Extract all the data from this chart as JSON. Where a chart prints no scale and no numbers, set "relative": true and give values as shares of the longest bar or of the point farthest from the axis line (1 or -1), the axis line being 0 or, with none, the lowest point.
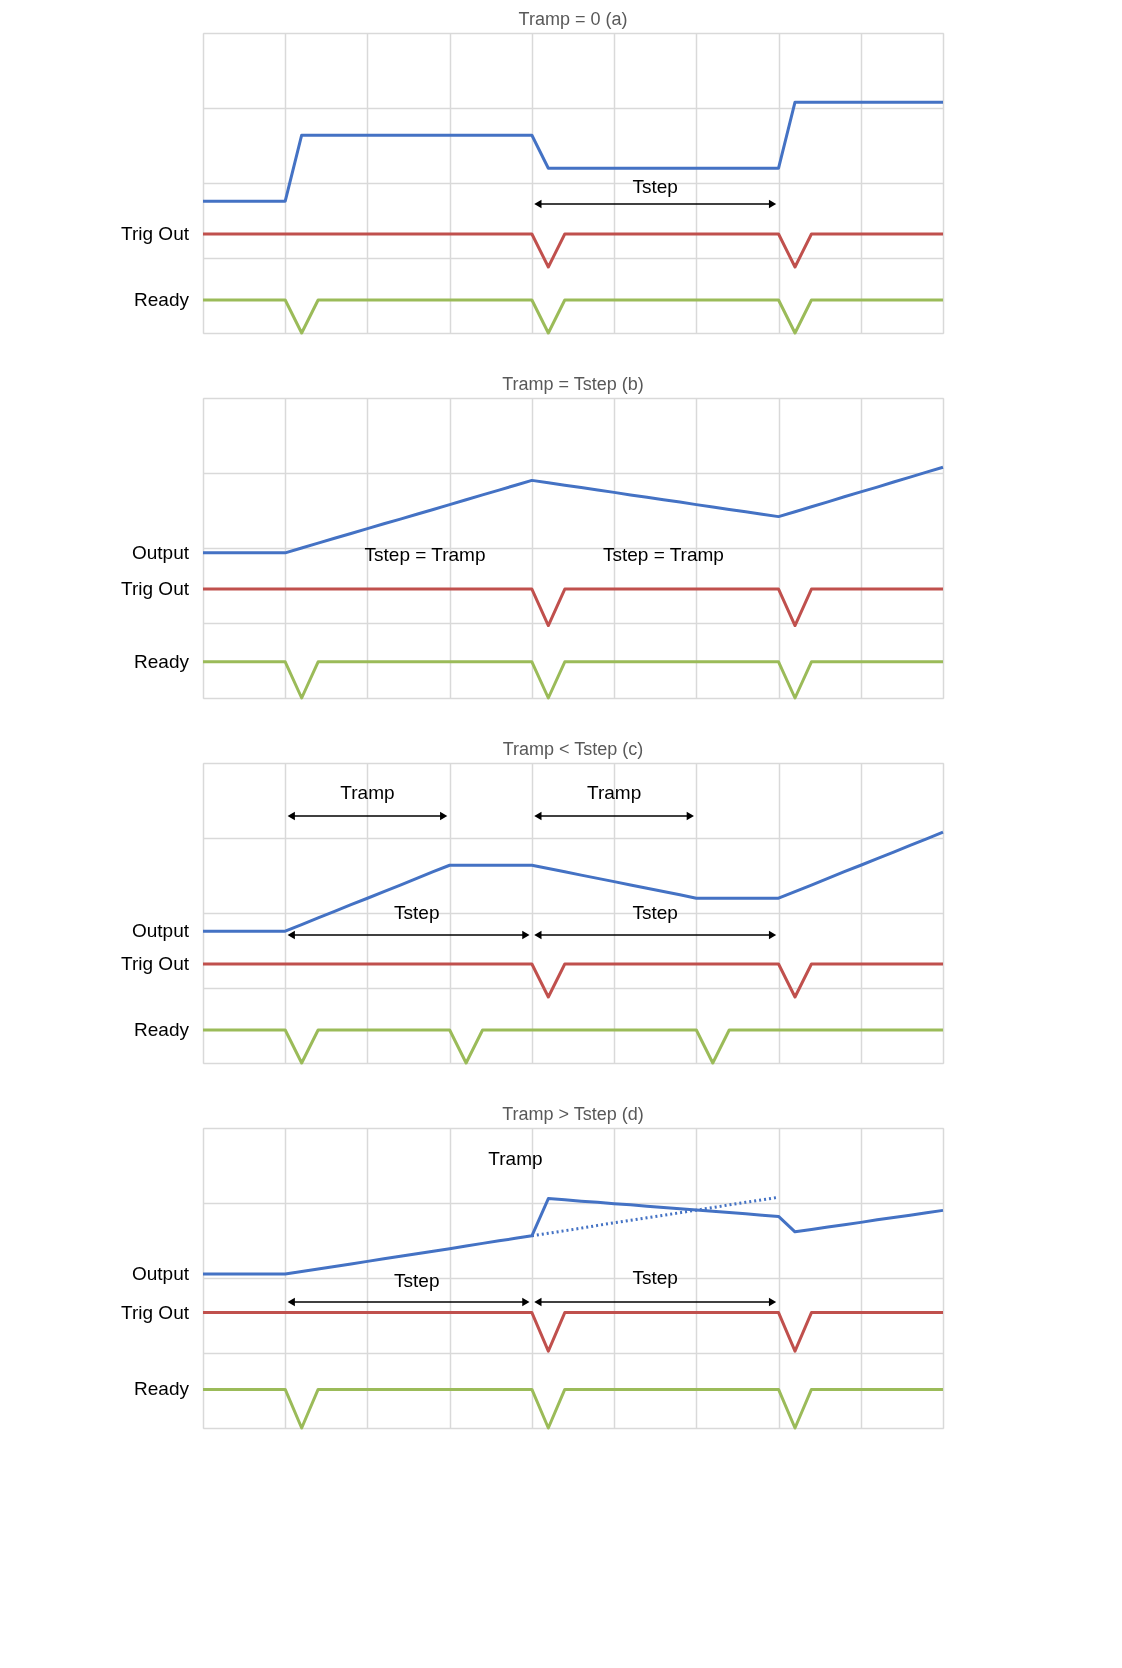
{
  "chart_data": [
    {
      "type": "line",
      "title": "Tramp = 0 (a)",
      "relative": true,
      "grid": true,
      "tick_labels": false,
      "categories": [
        null,
        null,
        null,
        null,
        null,
        null,
        null,
        null,
        null,
        null,
        null,
        null,
        null,
        null,
        null,
        null,
        null,
        null,
        null,
        null,
        null,
        null,
        null,
        null,
        null,
        null,
        null,
        null,
        null,
        null,
        null,
        null,
        null,
        null,
        null,
        null,
        null,
        null,
        null,
        null,
        null,
        null,
        null,
        null,
        null,
        null
      ],
      "series": [
        {
          "color": "#4472c4",
          "values": [
            0.571,
            0.571,
            0.571,
            0.571,
            0.571,
            0.571,
            0.857,
            0.857,
            0.857,
            0.857,
            0.857,
            0.857,
            0.857,
            0.857,
            0.857,
            0.857,
            0.857,
            0.857,
            0.857,
            0.857,
            0.857,
            0.714,
            0.714,
            0.714,
            0.714,
            0.714,
            0.714,
            0.714,
            0.714,
            0.714,
            0.714,
            0.714,
            0.714,
            0.714,
            0.714,
            0.714,
            1,
            1,
            1,
            1,
            1,
            1,
            1,
            1,
            1,
            1
          ]
        },
        {
          "name": "Trig Out",
          "color": "#c0504d",
          "values": [
            0.429,
            0.429,
            0.429,
            0.429,
            0.429,
            0.429,
            0.429,
            0.429,
            0.429,
            0.429,
            0.429,
            0.429,
            0.429,
            0.429,
            0.429,
            0.429,
            0.429,
            0.429,
            0.429,
            0.429,
            0.429,
            0.286,
            0.429,
            0.429,
            0.429,
            0.429,
            0.429,
            0.429,
            0.429,
            0.429,
            0.429,
            0.429,
            0.429,
            0.429,
            0.429,
            0.429,
            0.286,
            0.429,
            0.429,
            0.429,
            0.429,
            0.429,
            0.429,
            0.429,
            0.429,
            0.429
          ]
        },
        {
          "name": "Ready",
          "color": "#9bbb59",
          "values": [
            0.143,
            0.143,
            0.143,
            0.143,
            0.143,
            0.143,
            0,
            0.143,
            0.143,
            0.143,
            0.143,
            0.143,
            0.143,
            0.143,
            0.143,
            0.143,
            0.143,
            0.143,
            0.143,
            0.143,
            0.143,
            0,
            0.143,
            0.143,
            0.143,
            0.143,
            0.143,
            0.143,
            0.143,
            0.143,
            0.143,
            0.143,
            0.143,
            0.143,
            0.143,
            0.143,
            0,
            0.143,
            0.143,
            0.143,
            0.143,
            0.143,
            0.143,
            0.143,
            0.143,
            0.143
          ]
        }
      ],
      "annotations": [
        "Tstep"
      ]
    },
    {
      "type": "line",
      "title": "Tramp = Tstep (b)",
      "relative": true,
      "grid": true,
      "tick_labels": false,
      "categories": [
        null,
        null,
        null,
        null,
        null,
        null,
        null,
        null,
        null,
        null,
        null,
        null,
        null,
        null,
        null,
        null,
        null,
        null,
        null,
        null,
        null,
        null,
        null,
        null,
        null,
        null,
        null,
        null,
        null,
        null,
        null,
        null,
        null,
        null,
        null,
        null,
        null,
        null,
        null,
        null,
        null,
        null,
        null,
        null,
        null,
        null
      ],
      "series": [
        {
          "name": "Output",
          "color": "#4472c4",
          "values": [
            0.629,
            0.629,
            0.629,
            0.629,
            0.629,
            0.629,
            0.65,
            0.671,
            0.692,
            0.713,
            0.734,
            0.755,
            0.775,
            0.796,
            0.817,
            0.838,
            0.859,
            0.88,
            0.901,
            0.922,
            0.943,
            0.933,
            0.922,
            0.912,
            0.901,
            0.891,
            0.88,
            0.87,
            0.859,
            0.849,
            0.838,
            0.828,
            0.817,
            0.807,
            0.796,
            0.786,
            0.807,
            0.829,
            0.85,
            0.872,
            0.893,
            0.914,
            0.936,
            0.957,
            0.979,
            1
          ]
        },
        {
          "name": "Trig Out",
          "color": "#c0504d",
          "values": [
            0.472,
            0.472,
            0.472,
            0.472,
            0.472,
            0.472,
            0.472,
            0.472,
            0.472,
            0.472,
            0.472,
            0.472,
            0.472,
            0.472,
            0.472,
            0.472,
            0.472,
            0.472,
            0.472,
            0.472,
            0.472,
            0.314,
            0.472,
            0.472,
            0.472,
            0.472,
            0.472,
            0.472,
            0.472,
            0.472,
            0.472,
            0.472,
            0.472,
            0.472,
            0.472,
            0.472,
            0.314,
            0.472,
            0.472,
            0.472,
            0.472,
            0.472,
            0.472,
            0.472,
            0.472,
            0.472
          ]
        },
        {
          "name": "Ready",
          "color": "#9bbb59",
          "values": [
            0.157,
            0.157,
            0.157,
            0.157,
            0.157,
            0.157,
            0,
            0.157,
            0.157,
            0.157,
            0.157,
            0.157,
            0.157,
            0.157,
            0.157,
            0.157,
            0.157,
            0.157,
            0.157,
            0.157,
            0.157,
            0,
            0.157,
            0.157,
            0.157,
            0.157,
            0.157,
            0.157,
            0.157,
            0.157,
            0.157,
            0.157,
            0.157,
            0.157,
            0.157,
            0.157,
            0,
            0.157,
            0.157,
            0.157,
            0.157,
            0.157,
            0.157,
            0.157,
            0.157,
            0.157
          ]
        }
      ],
      "annotations": [
        "Tstep = Tramp",
        "Tstep = Tramp"
      ]
    },
    {
      "type": "line",
      "title": "Tramp < Tstep (c)",
      "relative": true,
      "grid": true,
      "tick_labels": false,
      "categories": [
        null,
        null,
        null,
        null,
        null,
        null,
        null,
        null,
        null,
        null,
        null,
        null,
        null,
        null,
        null,
        null,
        null,
        null,
        null,
        null,
        null,
        null,
        null,
        null,
        null,
        null,
        null,
        null,
        null,
        null,
        null,
        null,
        null,
        null,
        null,
        null,
        null,
        null,
        null,
        null,
        null,
        null,
        null,
        null,
        null,
        null
      ],
      "series": [
        {
          "name": "Output",
          "color": "#4472c4",
          "values": [
            0.571,
            0.571,
            0.571,
            0.571,
            0.571,
            0.571,
            0.6,
            0.629,
            0.657,
            0.686,
            0.714,
            0.743,
            0.771,
            0.8,
            0.829,
            0.857,
            0.857,
            0.857,
            0.857,
            0.857,
            0.857,
            0.843,
            0.829,
            0.814,
            0.8,
            0.786,
            0.771,
            0.757,
            0.743,
            0.729,
            0.714,
            0.714,
            0.714,
            0.714,
            0.714,
            0.714,
            0.743,
            0.771,
            0.8,
            0.829,
            0.857,
            0.886,
            0.914,
            0.943,
            0.971,
            1
          ]
        },
        {
          "name": "Trig Out",
          "color": "#c0504d",
          "values": [
            0.429,
            0.429,
            0.429,
            0.429,
            0.429,
            0.429,
            0.429,
            0.429,
            0.429,
            0.429,
            0.429,
            0.429,
            0.429,
            0.429,
            0.429,
            0.429,
            0.429,
            0.429,
            0.429,
            0.429,
            0.429,
            0.286,
            0.429,
            0.429,
            0.429,
            0.429,
            0.429,
            0.429,
            0.429,
            0.429,
            0.429,
            0.429,
            0.429,
            0.429,
            0.429,
            0.429,
            0.286,
            0.429,
            0.429,
            0.429,
            0.429,
            0.429,
            0.429,
            0.429,
            0.429,
            0.429
          ]
        },
        {
          "name": "Ready",
          "color": "#9bbb59",
          "values": [
            0.143,
            0.143,
            0.143,
            0.143,
            0.143,
            0.143,
            0,
            0.143,
            0.143,
            0.143,
            0.143,
            0.143,
            0.143,
            0.143,
            0.143,
            0.143,
            0,
            0.143,
            0.143,
            0.143,
            0.143,
            0.143,
            0.143,
            0.143,
            0.143,
            0.143,
            0.143,
            0.143,
            0.143,
            0.143,
            0.143,
            0,
            0.143,
            0.143,
            0.143,
            0.143,
            0.143,
            0.143,
            0.143,
            0.143,
            0.143,
            0.143,
            0.143,
            0.143,
            0.143,
            0.143
          ]
        }
      ],
      "annotations": [
        "Tramp",
        "Tramp",
        "Tstep",
        "Tstep"
      ]
    },
    {
      "type": "line",
      "title": "Tramp > Tstep (d)",
      "relative": true,
      "grid": true,
      "tick_labels": false,
      "categories": [
        null,
        null,
        null,
        null,
        null,
        null,
        null,
        null,
        null,
        null,
        null,
        null,
        null,
        null,
        null,
        null,
        null,
        null,
        null,
        null,
        null,
        null,
        null,
        null,
        null,
        null,
        null,
        null,
        null,
        null,
        null,
        null,
        null,
        null,
        null,
        null,
        null,
        null,
        null,
        null,
        null,
        null,
        null,
        null,
        null,
        null
      ],
      "series": [
        {
          "name": "Output",
          "color": "#4472c4",
          "values": [
            0.667,
            0.667,
            0.667,
            0.667,
            0.667,
            0.667,
            0.678,
            0.689,
            0.7,
            0.711,
            0.722,
            0.733,
            0.744,
            0.755,
            0.766,
            0.777,
            0.789,
            0.8,
            0.811,
            0.822,
            0.833,
            0.994,
            0.989,
            0.983,
            0.978,
            0.972,
            0.967,
            0.961,
            0.956,
            0.95,
            0.945,
            0.939,
            0.934,
            0.928,
            0.922,
            0.917,
            0.85,
            0.86,
            0.871,
            0.881,
            0.891,
            0.902,
            0.912,
            0.922,
            0.933,
            0.943
          ]
        },
        {
          "color": "#4472c4",
          "line_style": "dotted",
          "values": [
            null,
            null,
            null,
            null,
            null,
            null,
            null,
            null,
            null,
            null,
            null,
            null,
            null,
            null,
            null,
            null,
            null,
            null,
            null,
            null,
            0.833,
            0.844,
            0.855,
            0.866,
            0.878,
            0.889,
            0.9,
            0.911,
            0.922,
            0.933,
            0.944,
            0.955,
            0.967,
            0.978,
            0.989,
            1,
            null,
            null,
            null,
            null,
            null,
            null,
            null,
            null,
            null,
            null
          ]
        },
        {
          "name": "Trig Out",
          "color": "#c0504d",
          "values": [
            0.5,
            0.5,
            0.5,
            0.5,
            0.5,
            0.5,
            0.5,
            0.5,
            0.5,
            0.5,
            0.5,
            0.5,
            0.5,
            0.5,
            0.5,
            0.5,
            0.5,
            0.5,
            0.5,
            0.5,
            0.5,
            0.333,
            0.5,
            0.5,
            0.5,
            0.5,
            0.5,
            0.5,
            0.5,
            0.5,
            0.5,
            0.5,
            0.5,
            0.5,
            0.5,
            0.5,
            0.333,
            0.5,
            0.5,
            0.5,
            0.5,
            0.5,
            0.5,
            0.5,
            0.5,
            0.5
          ]
        },
        {
          "name": "Ready",
          "color": "#9bbb59",
          "values": [
            0.167,
            0.167,
            0.167,
            0.167,
            0.167,
            0.167,
            0,
            0.167,
            0.167,
            0.167,
            0.167,
            0.167,
            0.167,
            0.167,
            0.167,
            0.167,
            0.167,
            0.167,
            0.167,
            0.167,
            0.167,
            0,
            0.167,
            0.167,
            0.167,
            0.167,
            0.167,
            0.167,
            0.167,
            0.167,
            0.167,
            0.167,
            0.167,
            0.167,
            0.167,
            0.167,
            0,
            0.167,
            0.167,
            0.167,
            0.167,
            0.167,
            0.167,
            0.167,
            0.167,
            0.167
          ]
        }
      ],
      "annotations": [
        "Tramp",
        "Tstep",
        "Tstep"
      ]
    }
  ]
}
